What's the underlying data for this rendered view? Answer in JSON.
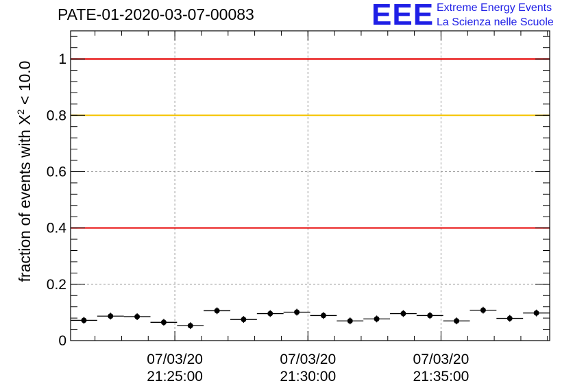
{
  "header": {
    "title": "PATE-01-2020-03-07-00083",
    "logo_mark": "EEE",
    "logo_line1": "Extreme Energy Events",
    "logo_line2": "La Scienza nelle Scuole"
  },
  "axes": {
    "ylabel_prefix": "fraction of events with X",
    "ylabel_sup": "2",
    "ylabel_suffix": " < 10.0"
  },
  "chart_data": {
    "type": "scatter",
    "title": "PATE-01-2020-03-07-00083",
    "ylabel": "fraction of events with X^2 < 10.0",
    "xlim": [
      "21:21:05",
      "21:39:05"
    ],
    "ylim": [
      0,
      1.1
    ],
    "y_ticks": [
      0,
      0.2,
      0.4,
      0.6,
      0.8,
      1
    ],
    "y_tick_labels": [
      "0",
      "0.2",
      "0.4",
      "0.6",
      "0.8",
      "1"
    ],
    "x_ticks": [
      {
        "date": "07/03/20",
        "time": "21:25:00"
      },
      {
        "date": "07/03/20",
        "time": "21:30:00"
      },
      {
        "date": "07/03/20",
        "time": "21:35:00"
      }
    ],
    "grid": true,
    "reference_lines": [
      {
        "y": 1.0,
        "color": "#e60000"
      },
      {
        "y": 0.8,
        "color": "#f5c400"
      },
      {
        "y": 0.4,
        "color": "#e60000"
      }
    ],
    "bin_width_s": 60,
    "points": [
      {
        "x": "21:21:35",
        "y": 0.072
      },
      {
        "x": "21:22:35",
        "y": 0.087
      },
      {
        "x": "21:23:35",
        "y": 0.085
      },
      {
        "x": "21:24:35",
        "y": 0.065
      },
      {
        "x": "21:25:35",
        "y": 0.053
      },
      {
        "x": "21:26:35",
        "y": 0.106
      },
      {
        "x": "21:27:35",
        "y": 0.075
      },
      {
        "x": "21:28:35",
        "y": 0.096
      },
      {
        "x": "21:29:35",
        "y": 0.101
      },
      {
        "x": "21:30:35",
        "y": 0.089
      },
      {
        "x": "21:31:35",
        "y": 0.07
      },
      {
        "x": "21:32:35",
        "y": 0.077
      },
      {
        "x": "21:33:35",
        "y": 0.096
      },
      {
        "x": "21:34:35",
        "y": 0.089
      },
      {
        "x": "21:35:35",
        "y": 0.07
      },
      {
        "x": "21:36:35",
        "y": 0.108
      },
      {
        "x": "21:37:35",
        "y": 0.079
      },
      {
        "x": "21:38:35",
        "y": 0.098
      }
    ],
    "y_err": 0.012
  }
}
